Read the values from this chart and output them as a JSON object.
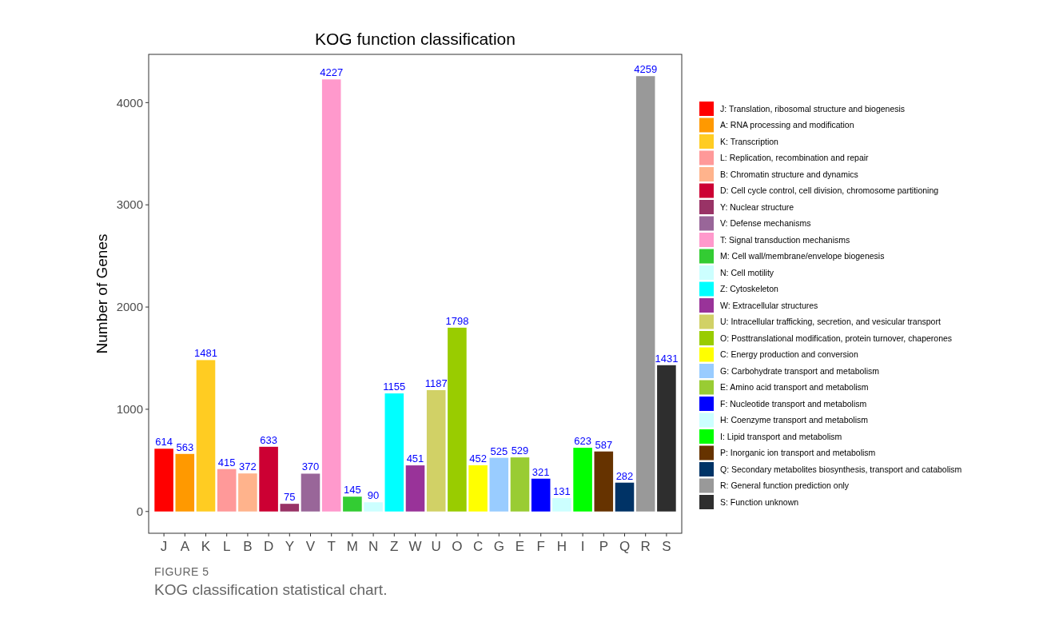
{
  "chart_data": {
    "type": "bar",
    "title": "KOG function classification",
    "ylabel": "Number of Genes",
    "stacked": true,
    "data_labels": true,
    "legend": "right",
    "grid": false,
    "categories": [
      "J",
      "A",
      "K",
      "L",
      "B",
      "D",
      "Y",
      "V",
      "T",
      "M",
      "N",
      "Z",
      "W",
      "U",
      "O",
      "C",
      "G",
      "E",
      "F",
      "H",
      "I",
      "P",
      "Q",
      "R",
      "S"
    ],
    "ylim": [
      -213,
      4472
    ],
    "yticks": [
      0,
      1000,
      2000,
      3000,
      4000
    ],
    "series": [
      {
        "name": "J: Translation, ribosomal structure and biogenesis",
        "color": "#ff0000",
        "values": [
          614,
          null,
          null,
          null,
          null,
          null,
          null,
          null,
          null,
          null,
          null,
          null,
          null,
          null,
          null,
          null,
          null,
          null,
          null,
          null,
          null,
          null,
          null,
          null,
          null
        ]
      },
      {
        "name": "A: RNA processing and modification",
        "color": "#ff9900",
        "values": [
          null,
          563,
          null,
          null,
          null,
          null,
          null,
          null,
          null,
          null,
          null,
          null,
          null,
          null,
          null,
          null,
          null,
          null,
          null,
          null,
          null,
          null,
          null,
          null,
          null
        ]
      },
      {
        "name": "K: Transcription",
        "color": "#ffcc22",
        "values": [
          null,
          null,
          1481,
          null,
          null,
          null,
          null,
          null,
          null,
          null,
          null,
          null,
          null,
          null,
          null,
          null,
          null,
          null,
          null,
          null,
          null,
          null,
          null,
          null,
          null
        ]
      },
      {
        "name": "L: Replication, recombination and repair",
        "color": "#ff9999",
        "values": [
          null,
          null,
          null,
          415,
          null,
          null,
          null,
          null,
          null,
          null,
          null,
          null,
          null,
          null,
          null,
          null,
          null,
          null,
          null,
          null,
          null,
          null,
          null,
          null,
          null
        ]
      },
      {
        "name": "B: Chromatin structure and dynamics",
        "color": "#ffb38c",
        "values": [
          null,
          null,
          null,
          null,
          372,
          null,
          null,
          null,
          null,
          null,
          null,
          null,
          null,
          null,
          null,
          null,
          null,
          null,
          null,
          null,
          null,
          null,
          null,
          null,
          null
        ]
      },
      {
        "name": "D: Cell cycle control, cell division, chromosome partitioning",
        "color": "#cc0033",
        "values": [
          null,
          null,
          null,
          null,
          null,
          633,
          null,
          null,
          null,
          null,
          null,
          null,
          null,
          null,
          null,
          null,
          null,
          null,
          null,
          null,
          null,
          null,
          null,
          null,
          null
        ]
      },
      {
        "name": "Y: Nuclear structure",
        "color": "#993366",
        "values": [
          null,
          null,
          null,
          null,
          null,
          null,
          75,
          null,
          null,
          null,
          null,
          null,
          null,
          null,
          null,
          null,
          null,
          null,
          null,
          null,
          null,
          null,
          null,
          null,
          null
        ]
      },
      {
        "name": "V: Defense mechanisms",
        "color": "#996699",
        "values": [
          null,
          null,
          null,
          null,
          null,
          null,
          null,
          370,
          null,
          null,
          null,
          null,
          null,
          null,
          null,
          null,
          null,
          null,
          null,
          null,
          null,
          null,
          null,
          null,
          null
        ]
      },
      {
        "name": "T: Signal transduction mechanisms",
        "color": "#ff99cc",
        "values": [
          null,
          null,
          null,
          null,
          null,
          null,
          null,
          null,
          4227,
          null,
          null,
          null,
          null,
          null,
          null,
          null,
          null,
          null,
          null,
          null,
          null,
          null,
          null,
          null,
          null
        ]
      },
      {
        "name": "M: Cell wall/membrane/envelope biogenesis",
        "color": "#33cc33",
        "values": [
          null,
          null,
          null,
          null,
          null,
          null,
          null,
          null,
          null,
          145,
          null,
          null,
          null,
          null,
          null,
          null,
          null,
          null,
          null,
          null,
          null,
          null,
          null,
          null,
          null
        ]
      },
      {
        "name": "N: Cell motility",
        "color": "#ccffff",
        "values": [
          null,
          null,
          null,
          null,
          null,
          null,
          null,
          null,
          null,
          null,
          90,
          null,
          null,
          null,
          null,
          null,
          null,
          null,
          null,
          null,
          null,
          null,
          null,
          null,
          null
        ]
      },
      {
        "name": "Z: Cytoskeleton",
        "color": "#00ffff",
        "values": [
          null,
          null,
          null,
          null,
          null,
          null,
          null,
          null,
          null,
          null,
          null,
          1155,
          null,
          null,
          null,
          null,
          null,
          null,
          null,
          null,
          null,
          null,
          null,
          null,
          null
        ]
      },
      {
        "name": "W: Extracellular structures",
        "color": "#993399",
        "values": [
          null,
          null,
          null,
          null,
          null,
          null,
          null,
          null,
          null,
          null,
          null,
          null,
          451,
          null,
          null,
          null,
          null,
          null,
          null,
          null,
          null,
          null,
          null,
          null,
          null
        ]
      },
      {
        "name": "U: Intracellular trafficking, secretion, and vesicular transport",
        "color": "#d1d166",
        "values": [
          null,
          null,
          null,
          null,
          null,
          null,
          null,
          null,
          null,
          null,
          null,
          null,
          null,
          1187,
          null,
          null,
          null,
          null,
          null,
          null,
          null,
          null,
          null,
          null,
          null
        ]
      },
      {
        "name": "O: Posttranslational modification, protein turnover, chaperones",
        "color": "#99cc00",
        "values": [
          null,
          null,
          null,
          null,
          null,
          null,
          null,
          null,
          null,
          null,
          null,
          null,
          null,
          null,
          1798,
          null,
          null,
          null,
          null,
          null,
          null,
          null,
          null,
          null,
          null
        ]
      },
      {
        "name": "C: Energy production and conversion",
        "color": "#ffff00",
        "values": [
          null,
          null,
          null,
          null,
          null,
          null,
          null,
          null,
          null,
          null,
          null,
          null,
          null,
          null,
          null,
          452,
          null,
          null,
          null,
          null,
          null,
          null,
          null,
          null,
          null
        ]
      },
      {
        "name": "G: Carbohydrate transport and metabolism",
        "color": "#99ccff",
        "values": [
          null,
          null,
          null,
          null,
          null,
          null,
          null,
          null,
          null,
          null,
          null,
          null,
          null,
          null,
          null,
          null,
          525,
          null,
          null,
          null,
          null,
          null,
          null,
          null,
          null
        ]
      },
      {
        "name": "E: Amino acid transport and metabolism",
        "color": "#99cc33",
        "values": [
          null,
          null,
          null,
          null,
          null,
          null,
          null,
          null,
          null,
          null,
          null,
          null,
          null,
          null,
          null,
          null,
          null,
          529,
          null,
          null,
          null,
          null,
          null,
          null,
          null
        ]
      },
      {
        "name": "F: Nucleotide transport and metabolism",
        "color": "#0000ff",
        "values": [
          null,
          null,
          null,
          null,
          null,
          null,
          null,
          null,
          null,
          null,
          null,
          null,
          null,
          null,
          null,
          null,
          null,
          null,
          321,
          null,
          null,
          null,
          null,
          null,
          null
        ]
      },
      {
        "name": "H: Coenzyme transport and metabolism",
        "color": "#ccffff",
        "values": [
          null,
          null,
          null,
          null,
          null,
          null,
          null,
          null,
          null,
          null,
          null,
          null,
          null,
          null,
          null,
          null,
          null,
          null,
          null,
          131,
          null,
          null,
          null,
          null,
          null
        ]
      },
      {
        "name": "I: Lipid transport and metabolism",
        "color": "#00ff00",
        "values": [
          null,
          null,
          null,
          null,
          null,
          null,
          null,
          null,
          null,
          null,
          null,
          null,
          null,
          null,
          null,
          null,
          null,
          null,
          null,
          null,
          623,
          null,
          null,
          null,
          null
        ]
      },
      {
        "name": "P: Inorganic ion transport and metabolism",
        "color": "#663300",
        "values": [
          null,
          null,
          null,
          null,
          null,
          null,
          null,
          null,
          null,
          null,
          null,
          null,
          null,
          null,
          null,
          null,
          null,
          null,
          null,
          null,
          null,
          587,
          null,
          null,
          null
        ]
      },
      {
        "name": "Q: Secondary metabolites biosynthesis, transport and catabolism",
        "color": "#003366",
        "values": [
          null,
          null,
          null,
          null,
          null,
          null,
          null,
          null,
          null,
          null,
          null,
          null,
          null,
          null,
          null,
          null,
          null,
          null,
          null,
          null,
          null,
          null,
          282,
          null,
          null
        ]
      },
      {
        "name": "R: General function prediction only",
        "color": "#999999",
        "values": [
          null,
          null,
          null,
          null,
          null,
          null,
          null,
          null,
          null,
          null,
          null,
          null,
          null,
          null,
          null,
          null,
          null,
          null,
          null,
          null,
          null,
          null,
          null,
          4259,
          null
        ]
      },
      {
        "name": "S: Function unknown",
        "color": "#2e2e2e",
        "values": [
          null,
          null,
          null,
          null,
          null,
          null,
          null,
          null,
          null,
          null,
          null,
          null,
          null,
          null,
          null,
          null,
          null,
          null,
          null,
          null,
          null,
          null,
          null,
          null,
          1431
        ]
      }
    ],
    "annotations": [
      "FIGURE 5",
      "KOG classification statistical chart."
    ]
  }
}
